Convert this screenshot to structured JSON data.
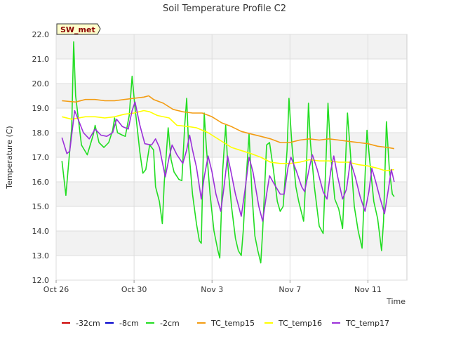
{
  "chart_data": {
    "type": "line",
    "title": "Soil Temperature Profile C2",
    "xlabel": "Time",
    "ylabel": "Temperature (C)",
    "badge": "SW_met",
    "ylim": [
      12.0,
      22.0
    ],
    "yticks": [
      "12.0",
      "13.0",
      "14.0",
      "15.0",
      "16.0",
      "17.0",
      "18.0",
      "19.0",
      "20.0",
      "21.0",
      "22.0"
    ],
    "xlim_days": [
      0,
      18
    ],
    "xticks": [
      {
        "day": 0,
        "label": "Oct 26"
      },
      {
        "day": 4,
        "label": "Oct 30"
      },
      {
        "day": 8,
        "label": "Nov 3"
      },
      {
        "day": 12,
        "label": "Nov 7"
      },
      {
        "day": 16,
        "label": "Nov 11"
      }
    ],
    "grid": true,
    "legend_position": "bottom",
    "series": [
      {
        "name": "-32cm",
        "color": "#cc0000",
        "points": []
      },
      {
        "name": "-8cm",
        "color": "#0000cc",
        "points": []
      },
      {
        "name": "-2cm",
        "color": "#22dd22",
        "points": [
          [
            0.3,
            16.85
          ],
          [
            0.5,
            15.45
          ],
          [
            0.8,
            18.2
          ],
          [
            0.9,
            21.7
          ],
          [
            1.0,
            19.5
          ],
          [
            1.3,
            17.5
          ],
          [
            1.6,
            17.1
          ],
          [
            1.9,
            17.9
          ],
          [
            2.0,
            18.3
          ],
          [
            2.2,
            17.6
          ],
          [
            2.45,
            17.4
          ],
          [
            2.7,
            17.6
          ],
          [
            2.9,
            18.1
          ],
          [
            3.0,
            18.6
          ],
          [
            3.15,
            18.0
          ],
          [
            3.4,
            17.9
          ],
          [
            3.55,
            17.85
          ],
          [
            3.75,
            18.7
          ],
          [
            3.9,
            20.3
          ],
          [
            4.05,
            19.0
          ],
          [
            4.3,
            17.2
          ],
          [
            4.45,
            16.35
          ],
          [
            4.6,
            16.5
          ],
          [
            4.8,
            17.5
          ],
          [
            5.0,
            17.3
          ],
          [
            5.1,
            15.8
          ],
          [
            5.3,
            15.2
          ],
          [
            5.45,
            14.3
          ],
          [
            5.55,
            16.0
          ],
          [
            5.75,
            18.2
          ],
          [
            5.9,
            16.9
          ],
          [
            6.05,
            16.4
          ],
          [
            6.3,
            16.1
          ],
          [
            6.45,
            16.05
          ],
          [
            6.6,
            18.3
          ],
          [
            6.7,
            19.4
          ],
          [
            6.8,
            17.4
          ],
          [
            7.0,
            15.5
          ],
          [
            7.2,
            14.3
          ],
          [
            7.35,
            13.6
          ],
          [
            7.45,
            13.5
          ],
          [
            7.6,
            18.8
          ],
          [
            7.7,
            17.5
          ],
          [
            7.9,
            15.5
          ],
          [
            8.1,
            14.0
          ],
          [
            8.3,
            13.2
          ],
          [
            8.4,
            12.9
          ],
          [
            8.55,
            16.5
          ],
          [
            8.7,
            18.3
          ],
          [
            8.8,
            16.8
          ],
          [
            9.0,
            15.0
          ],
          [
            9.2,
            13.7
          ],
          [
            9.35,
            13.2
          ],
          [
            9.5,
            13.0
          ],
          [
            9.6,
            14.0
          ],
          [
            9.75,
            16.1
          ],
          [
            9.9,
            17.95
          ],
          [
            10.05,
            15.5
          ],
          [
            10.2,
            13.8
          ],
          [
            10.35,
            13.2
          ],
          [
            10.5,
            12.7
          ],
          [
            10.6,
            14.0
          ],
          [
            10.8,
            17.5
          ],
          [
            10.95,
            17.6
          ],
          [
            11.15,
            16.5
          ],
          [
            11.35,
            15.2
          ],
          [
            11.5,
            14.8
          ],
          [
            11.65,
            15.0
          ],
          [
            11.85,
            17.3
          ],
          [
            11.95,
            19.4
          ],
          [
            12.1,
            17.5
          ],
          [
            12.3,
            15.8
          ],
          [
            12.45,
            15.2
          ],
          [
            12.7,
            14.4
          ],
          [
            12.85,
            16.7
          ],
          [
            12.95,
            19.2
          ],
          [
            13.05,
            17.6
          ],
          [
            13.25,
            15.8
          ],
          [
            13.5,
            14.2
          ],
          [
            13.7,
            13.9
          ],
          [
            13.85,
            16.9
          ],
          [
            13.95,
            19.2
          ],
          [
            14.1,
            17.0
          ],
          [
            14.3,
            15.3
          ],
          [
            14.5,
            14.9
          ],
          [
            14.7,
            14.1
          ],
          [
            14.85,
            16.8
          ],
          [
            14.95,
            18.8
          ],
          [
            15.1,
            17.2
          ],
          [
            15.3,
            15.0
          ],
          [
            15.5,
            14.0
          ],
          [
            15.7,
            13.3
          ],
          [
            15.85,
            16.2
          ],
          [
            15.95,
            18.1
          ],
          [
            16.1,
            16.8
          ],
          [
            16.3,
            15.2
          ],
          [
            16.5,
            14.5
          ],
          [
            16.7,
            13.2
          ],
          [
            16.8,
            14.4
          ],
          [
            16.95,
            18.45
          ],
          [
            17.1,
            16.5
          ],
          [
            17.25,
            15.5
          ],
          [
            17.35,
            15.4
          ]
        ]
      },
      {
        "name": "TC_temp15",
        "color": "#f39c12",
        "points": [
          [
            0.3,
            19.3
          ],
          [
            1.0,
            19.25
          ],
          [
            1.5,
            19.35
          ],
          [
            2.0,
            19.35
          ],
          [
            2.5,
            19.3
          ],
          [
            3.0,
            19.3
          ],
          [
            3.5,
            19.35
          ],
          [
            4.0,
            19.4
          ],
          [
            4.5,
            19.45
          ],
          [
            4.75,
            19.5
          ],
          [
            5.0,
            19.35
          ],
          [
            5.5,
            19.2
          ],
          [
            6.0,
            18.95
          ],
          [
            6.5,
            18.85
          ],
          [
            7.0,
            18.8
          ],
          [
            7.5,
            18.8
          ],
          [
            8.0,
            18.65
          ],
          [
            8.5,
            18.4
          ],
          [
            9.0,
            18.25
          ],
          [
            9.5,
            18.05
          ],
          [
            10.0,
            17.95
          ],
          [
            10.5,
            17.85
          ],
          [
            11.0,
            17.75
          ],
          [
            11.5,
            17.6
          ],
          [
            12.0,
            17.6
          ],
          [
            12.5,
            17.7
          ],
          [
            13.0,
            17.75
          ],
          [
            13.5,
            17.7
          ],
          [
            14.0,
            17.75
          ],
          [
            14.5,
            17.7
          ],
          [
            15.0,
            17.65
          ],
          [
            15.5,
            17.6
          ],
          [
            16.0,
            17.55
          ],
          [
            16.5,
            17.45
          ],
          [
            17.0,
            17.4
          ],
          [
            17.35,
            17.35
          ]
        ]
      },
      {
        "name": "TC_temp16",
        "color": "#ffff00",
        "points": [
          [
            0.3,
            18.65
          ],
          [
            0.8,
            18.55
          ],
          [
            1.5,
            18.65
          ],
          [
            2.0,
            18.65
          ],
          [
            2.5,
            18.6
          ],
          [
            3.0,
            18.65
          ],
          [
            3.5,
            18.75
          ],
          [
            4.0,
            18.8
          ],
          [
            4.5,
            18.9
          ],
          [
            4.8,
            18.85
          ],
          [
            5.2,
            18.7
          ],
          [
            5.8,
            18.6
          ],
          [
            6.2,
            18.3
          ],
          [
            6.8,
            18.25
          ],
          [
            7.2,
            18.2
          ],
          [
            7.8,
            18.0
          ],
          [
            8.4,
            17.7
          ],
          [
            9.0,
            17.4
          ],
          [
            9.6,
            17.25
          ],
          [
            10.0,
            17.15
          ],
          [
            10.5,
            17.0
          ],
          [
            11.0,
            16.8
          ],
          [
            11.5,
            16.75
          ],
          [
            12.0,
            16.75
          ],
          [
            12.5,
            16.8
          ],
          [
            13.0,
            16.9
          ],
          [
            13.5,
            16.85
          ],
          [
            14.0,
            16.85
          ],
          [
            14.5,
            16.8
          ],
          [
            15.0,
            16.8
          ],
          [
            15.5,
            16.7
          ],
          [
            16.0,
            16.65
          ],
          [
            16.5,
            16.55
          ],
          [
            16.9,
            16.45
          ],
          [
            17.35,
            16.5
          ]
        ]
      },
      {
        "name": "TC_temp17",
        "color": "#9b30d9",
        "points": [
          [
            0.3,
            17.8
          ],
          [
            0.55,
            17.15
          ],
          [
            0.7,
            17.25
          ],
          [
            0.95,
            18.9
          ],
          [
            1.1,
            18.6
          ],
          [
            1.4,
            18.0
          ],
          [
            1.7,
            17.75
          ],
          [
            2.0,
            18.15
          ],
          [
            2.3,
            17.9
          ],
          [
            2.6,
            17.85
          ],
          [
            2.9,
            18.0
          ],
          [
            3.1,
            18.55
          ],
          [
            3.4,
            18.25
          ],
          [
            3.7,
            18.15
          ],
          [
            3.9,
            18.9
          ],
          [
            4.05,
            19.25
          ],
          [
            4.3,
            18.3
          ],
          [
            4.55,
            17.55
          ],
          [
            4.9,
            17.5
          ],
          [
            5.1,
            17.75
          ],
          [
            5.3,
            17.4
          ],
          [
            5.6,
            16.2
          ],
          [
            5.8,
            17.0
          ],
          [
            5.95,
            17.5
          ],
          [
            6.2,
            17.1
          ],
          [
            6.5,
            16.75
          ],
          [
            6.7,
            17.3
          ],
          [
            6.85,
            17.9
          ],
          [
            7.0,
            17.3
          ],
          [
            7.2,
            16.6
          ],
          [
            7.45,
            15.3
          ],
          [
            7.6,
            16.2
          ],
          [
            7.8,
            17.05
          ],
          [
            8.0,
            16.4
          ],
          [
            8.2,
            15.5
          ],
          [
            8.45,
            14.8
          ],
          [
            8.6,
            15.7
          ],
          [
            8.8,
            17.05
          ],
          [
            8.95,
            16.5
          ],
          [
            9.2,
            15.5
          ],
          [
            9.5,
            14.6
          ],
          [
            9.7,
            15.7
          ],
          [
            9.9,
            17.0
          ],
          [
            10.1,
            16.4
          ],
          [
            10.4,
            15.0
          ],
          [
            10.6,
            14.4
          ],
          [
            10.8,
            15.5
          ],
          [
            10.95,
            16.25
          ],
          [
            11.2,
            15.9
          ],
          [
            11.5,
            15.5
          ],
          [
            11.7,
            15.5
          ],
          [
            11.9,
            16.6
          ],
          [
            12.05,
            17.0
          ],
          [
            12.3,
            16.5
          ],
          [
            12.6,
            15.8
          ],
          [
            12.75,
            15.6
          ],
          [
            13.0,
            16.6
          ],
          [
            13.15,
            17.1
          ],
          [
            13.4,
            16.5
          ],
          [
            13.7,
            15.6
          ],
          [
            13.9,
            15.3
          ],
          [
            14.1,
            16.5
          ],
          [
            14.25,
            17.05
          ],
          [
            14.45,
            16.2
          ],
          [
            14.7,
            15.3
          ],
          [
            14.9,
            15.7
          ],
          [
            15.1,
            16.85
          ],
          [
            15.35,
            16.2
          ],
          [
            15.6,
            15.4
          ],
          [
            15.85,
            14.8
          ],
          [
            16.05,
            15.6
          ],
          [
            16.2,
            16.55
          ],
          [
            16.4,
            16.0
          ],
          [
            16.6,
            15.4
          ],
          [
            16.85,
            14.7
          ],
          [
            17.05,
            15.7
          ],
          [
            17.2,
            16.5
          ],
          [
            17.35,
            16.0
          ]
        ]
      }
    ]
  }
}
